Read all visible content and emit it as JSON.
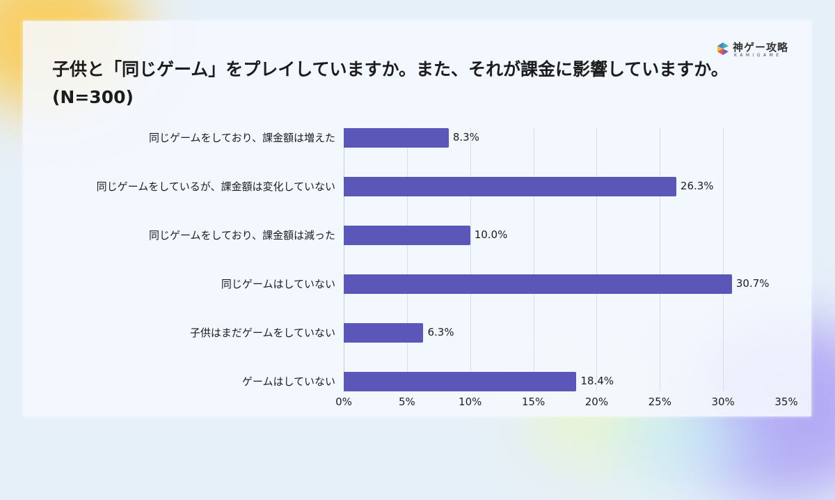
{
  "title": "子供と「同じゲーム」をプレイしていますか。また、それが課金に影響していますか。(N=300)",
  "logo": {
    "name": "神ゲー攻略",
    "sub": "KAMIGAME",
    "colors": [
      "#3fb6a8",
      "#f0c22e",
      "#e8574a",
      "#7a5cc6"
    ]
  },
  "colors": {
    "bar": "#5a57b8",
    "grid": "#d9dde6",
    "text": "#1c1c1c"
  },
  "chart_data": {
    "type": "bar",
    "orientation": "horizontal",
    "title": "子供と「同じゲーム」をプレイしていますか。また、それが課金に影響していますか。(N=300)",
    "categories": [
      "同じゲームをしており、課金額は増えた",
      "同じゲームをしているが、課金額は変化していない",
      "同じゲームをしており、課金額は減った",
      "同じゲームはしていない",
      "子供はまだゲームをしていない",
      "ゲームはしていない"
    ],
    "values": [
      8.3,
      26.3,
      10.0,
      30.7,
      6.3,
      18.4
    ],
    "value_labels": [
      "8.3%",
      "26.3%",
      "10.0%",
      "30.7%",
      "6.3%",
      "18.4%"
    ],
    "unit": "%",
    "xlabel": "",
    "ylabel": "",
    "xlim": [
      0,
      35
    ],
    "x_ticks": [
      "0%",
      "5%",
      "10%",
      "15%",
      "20%",
      "25%",
      "30%",
      "35%"
    ],
    "grid": true,
    "legend": null
  }
}
